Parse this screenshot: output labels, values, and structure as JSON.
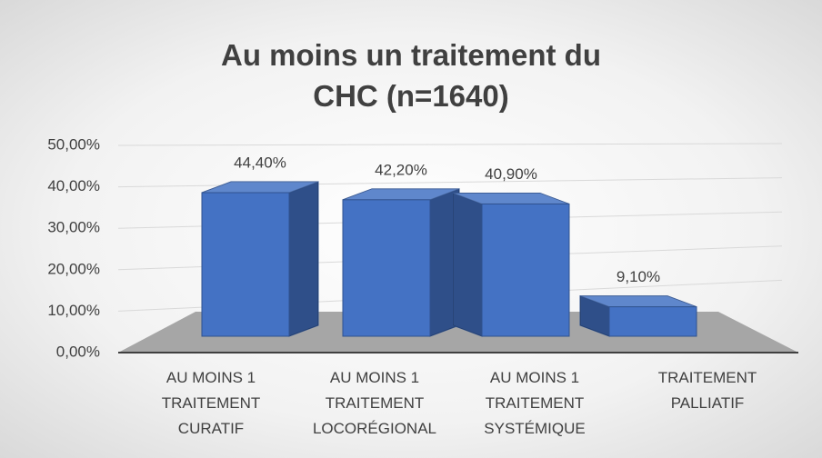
{
  "chart_data": {
    "type": "bar3d",
    "title": "Au moins un traitement du CHC (n=1640)",
    "categories": [
      "AU MOINS 1 TRAITEMENT CURATIF",
      "AU MOINS 1 TRAITEMENT LOCORÉGIONAL",
      "AU MOINS 1 TRAITEMENT SYSTÉMIQUE",
      "TRAITEMENT PALLIATIF"
    ],
    "values": [
      44.4,
      42.2,
      40.9,
      9.1
    ],
    "value_labels": [
      "44,40%",
      "42,20%",
      "40,90%",
      "9,10%"
    ],
    "color": "#4472c4",
    "ylim": [
      0,
      50
    ],
    "yticks": [
      {
        "value": 0,
        "label": "0,00%"
      },
      {
        "value": 10,
        "label": "10,00%"
      },
      {
        "value": 20,
        "label": "20,00%"
      },
      {
        "value": 30,
        "label": "30,00%"
      },
      {
        "value": 40,
        "label": "40,00%"
      },
      {
        "value": 50,
        "label": "50,00%"
      }
    ],
    "grid": true
  }
}
